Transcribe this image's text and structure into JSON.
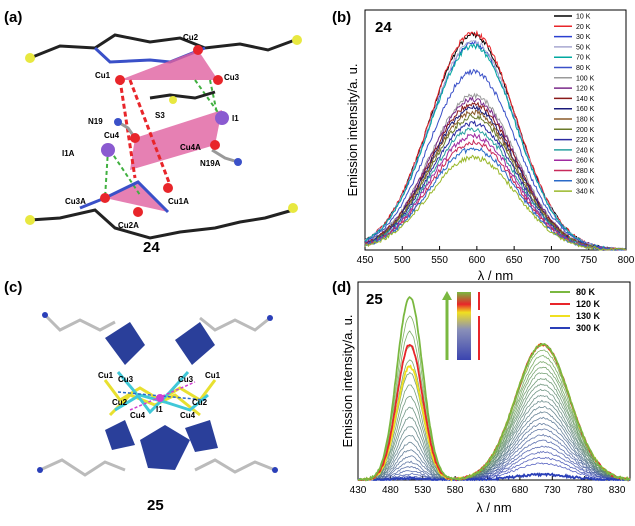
{
  "panels": {
    "a": {
      "label": "(a)",
      "compound": "24",
      "atoms": [
        "Cu2",
        "Cu1",
        "Cu3",
        "S3",
        "N19",
        "I1",
        "Cu4",
        "Cu4A",
        "I1A",
        "N19A",
        "Cu3A",
        "Cu1A",
        "Cu2A"
      ]
    },
    "c": {
      "label": "(c)",
      "compound": "25",
      "atoms": [
        "Cu3",
        "Cu3",
        "Cu1",
        "Cu1",
        "Cu2",
        "Cu2",
        "I1",
        "Cu4",
        "Cu4"
      ]
    }
  },
  "chart_data": [
    {
      "panel": "(b)",
      "type": "line",
      "compound": "24",
      "xlabel": "λ / nm",
      "ylabel": "Emission intensity/a. u.",
      "xlim": [
        450,
        800
      ],
      "xticks": [
        "450",
        "500",
        "550",
        "600",
        "650",
        "700",
        "750",
        "800"
      ],
      "peak_nm": 595,
      "legend_position": "right",
      "series": [
        {
          "name": "10 K",
          "peak": 1.0,
          "color": "#000000"
        },
        {
          "name": "20 K",
          "peak": 1.01,
          "color": "#e8252a"
        },
        {
          "name": "30 K",
          "peak": 0.96,
          "color": "#2a3fd0"
        },
        {
          "name": "50 K",
          "peak": 0.97,
          "color": "#a8a8d0"
        },
        {
          "name": "70 K",
          "peak": 0.95,
          "color": "#00a8a0"
        },
        {
          "name": "80 K",
          "peak": 0.83,
          "color": "#3a50c8"
        },
        {
          "name": "100 K",
          "peak": 0.72,
          "color": "#9a9a9a"
        },
        {
          "name": "120 K",
          "peak": 0.7,
          "color": "#7a2a8a"
        },
        {
          "name": "140 K",
          "peak": 0.68,
          "color": "#8a1a1a"
        },
        {
          "name": "160 K",
          "peak": 0.66,
          "color": "#1a1a7a"
        },
        {
          "name": "180 K",
          "peak": 0.64,
          "color": "#8a5a2a"
        },
        {
          "name": "200 K",
          "peak": 0.62,
          "color": "#6a7a2a"
        },
        {
          "name": "220 K",
          "peak": 0.59,
          "color": "#2a2aa0"
        },
        {
          "name": "240 K",
          "peak": 0.56,
          "color": "#2aa0a0"
        },
        {
          "name": "260 K",
          "peak": 0.53,
          "color": "#a02aa0"
        },
        {
          "name": "280 K",
          "peak": 0.5,
          "color": "#c82a5a"
        },
        {
          "name": "300 K",
          "peak": 0.47,
          "color": "#2a6ac8"
        },
        {
          "name": "340 K",
          "peak": 0.43,
          "color": "#9ab82a"
        }
      ]
    },
    {
      "panel": "(d)",
      "type": "line",
      "compound": "25",
      "xlabel": "λ / nm",
      "ylabel": "Emission intensity/a. u.",
      "xlim": [
        430,
        850
      ],
      "xticks": [
        "430",
        "480",
        "530",
        "580",
        "630",
        "680",
        "730",
        "780",
        "830"
      ],
      "peak1_nm": 510,
      "peak2_nm": 715,
      "legend_position": "top-right",
      "series": [
        {
          "name": "80 K",
          "peak1": 1.0,
          "peak2": 0.74,
          "color": "#7ab840"
        },
        {
          "name": "120 K",
          "peak1": 0.74,
          "peak2": 0.74,
          "color": "#e8252a"
        },
        {
          "name": "130 K",
          "peak1": 0.62,
          "peak2": 0.74,
          "color": "#f0e020"
        },
        {
          "name": "300 K",
          "peak1": 0.01,
          "peak2": 0.03,
          "color": "#2a3fb8"
        }
      ]
    }
  ]
}
